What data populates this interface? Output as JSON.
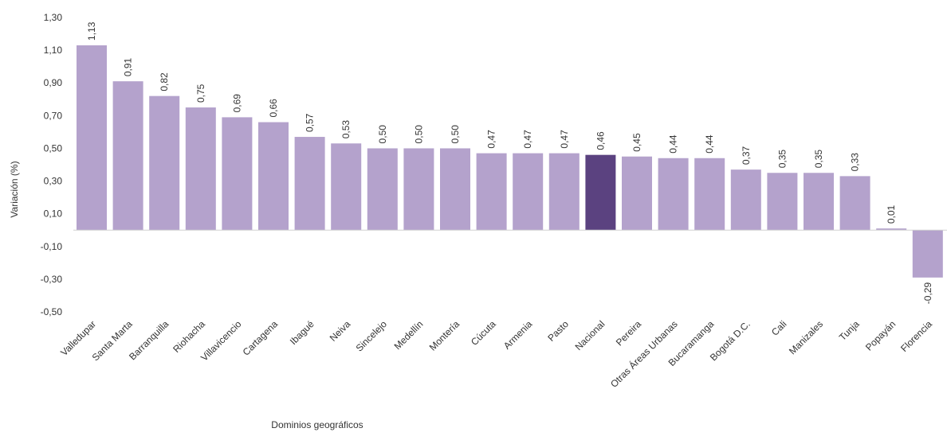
{
  "chart_data": {
    "type": "bar",
    "title": "",
    "xlabel": "Dominios geográficos",
    "ylabel": "Variación (%)",
    "ylim": [
      -0.5,
      1.3
    ],
    "yticks": [
      "1,30",
      "1,10",
      "0,90",
      "0,70",
      "0,50",
      "0,30",
      "0,10",
      "-0,10",
      "-0,30",
      "-0,50"
    ],
    "ytick_values": [
      1.3,
      1.1,
      0.9,
      0.7,
      0.5,
      0.3,
      0.1,
      -0.1,
      -0.3,
      -0.5
    ],
    "grid": false,
    "categories": [
      "Valledupar",
      "Santa Marta",
      "Barranquilla",
      "Riohacha",
      "Villavicencio",
      "Cartagena",
      "Ibagué",
      "Neiva",
      "Sincelejo",
      "Medellín",
      "Montería",
      "Cúcuta",
      "Armenia",
      "Pasto",
      "Nacional",
      "Pereira",
      "Otras Áreas Urbanas",
      "Bucaramanga",
      "Bogotá D.C.",
      "Cali",
      "Manizales",
      "Tunja",
      "Popayán",
      "Florencia"
    ],
    "values": [
      1.13,
      0.91,
      0.82,
      0.75,
      0.69,
      0.66,
      0.57,
      0.53,
      0.5,
      0.5,
      0.5,
      0.47,
      0.47,
      0.47,
      0.46,
      0.45,
      0.44,
      0.44,
      0.37,
      0.35,
      0.35,
      0.33,
      0.01,
      -0.29
    ],
    "value_labels": [
      "1,13",
      "0,91",
      "0,82",
      "0,75",
      "0,69",
      "0,66",
      "0,57",
      "0,53",
      "0,50",
      "0,50",
      "0,50",
      "0,47",
      "0,47",
      "0,47",
      "0,46",
      "0,45",
      "0,44",
      "0,44",
      "0,37",
      "0,35",
      "0,35",
      "0,33",
      "0,01",
      "-0,29"
    ],
    "colors": {
      "default": "#b4a2cc",
      "highlight": "#5b4280",
      "highlight_category": "Nacional",
      "baseline": "#d0d0d0"
    }
  }
}
